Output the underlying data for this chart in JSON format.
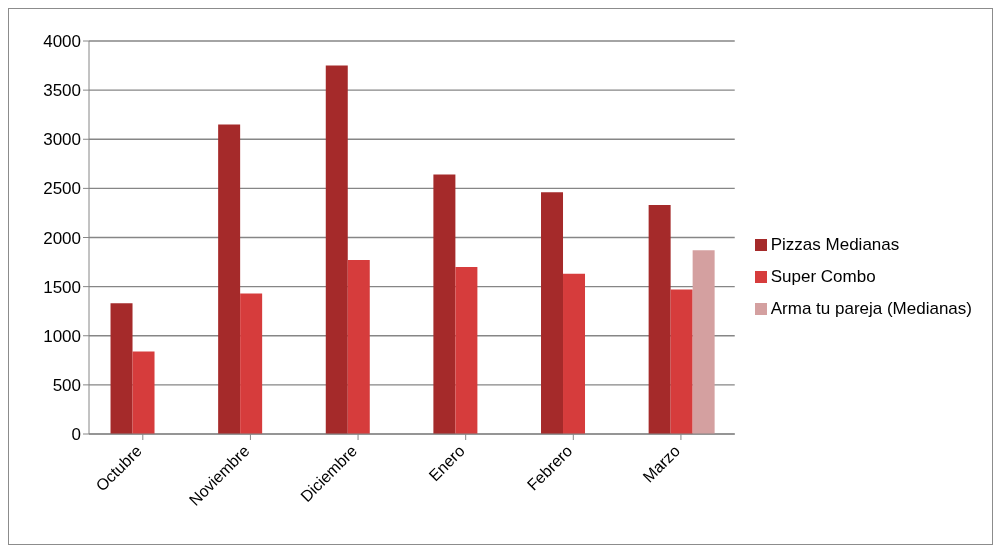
{
  "chart_data": {
    "type": "bar",
    "categories": [
      "Octubre",
      "Noviembre",
      "Diciembre",
      "Enero",
      "Febrero",
      "Marzo"
    ],
    "series": [
      {
        "name": "Pizzas Medianas",
        "color": "#a52a2a",
        "values": [
          1330,
          3150,
          3750,
          2640,
          2460,
          2330
        ]
      },
      {
        "name": "Super Combo",
        "color": "#d63c3c",
        "values": [
          840,
          1430,
          1770,
          1700,
          1630,
          1470
        ]
      },
      {
        "name": "Arma tu pareja (Medianas)",
        "color": "#d4a0a0",
        "values": [
          null,
          null,
          null,
          null,
          null,
          1870
        ]
      }
    ],
    "ylim": [
      0,
      4000
    ],
    "yticks": [
      0,
      500,
      1000,
      1500,
      2000,
      2500,
      3000,
      3500,
      4000
    ],
    "grid": "y",
    "legend": "right"
  }
}
